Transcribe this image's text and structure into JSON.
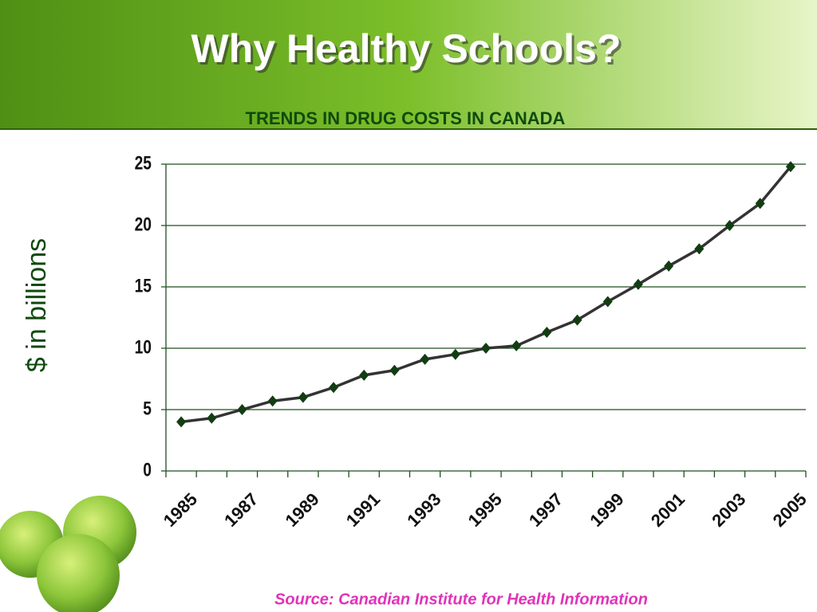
{
  "header": {
    "title": "Why Healthy Schools?"
  },
  "chart_data": {
    "type": "line",
    "title": "TRENDS IN DRUG COSTS IN CANADA",
    "y_label": "$ in billions",
    "categories": [
      "1985",
      null,
      "1987",
      null,
      "1989",
      null,
      "1991",
      null,
      "1993",
      null,
      "1995",
      null,
      "1997",
      null,
      "1999",
      null,
      "2001",
      null,
      "2003",
      null,
      "2005"
    ],
    "values": [
      4.0,
      4.3,
      5.0,
      5.7,
      6.0,
      6.8,
      7.8,
      8.2,
      9.1,
      9.5,
      10.0,
      10.2,
      11.3,
      12.3,
      13.8,
      15.2,
      16.7,
      18.1,
      20.0,
      21.8,
      24.8
    ],
    "color": "#333333",
    "marker_color": "#123d12",
    "ylim": [
      0,
      25
    ],
    "yticks": [
      0,
      5,
      10,
      15,
      20,
      25
    ],
    "grid": true
  },
  "footer": {
    "source": "Source: Canadian Institute for Health Information"
  }
}
